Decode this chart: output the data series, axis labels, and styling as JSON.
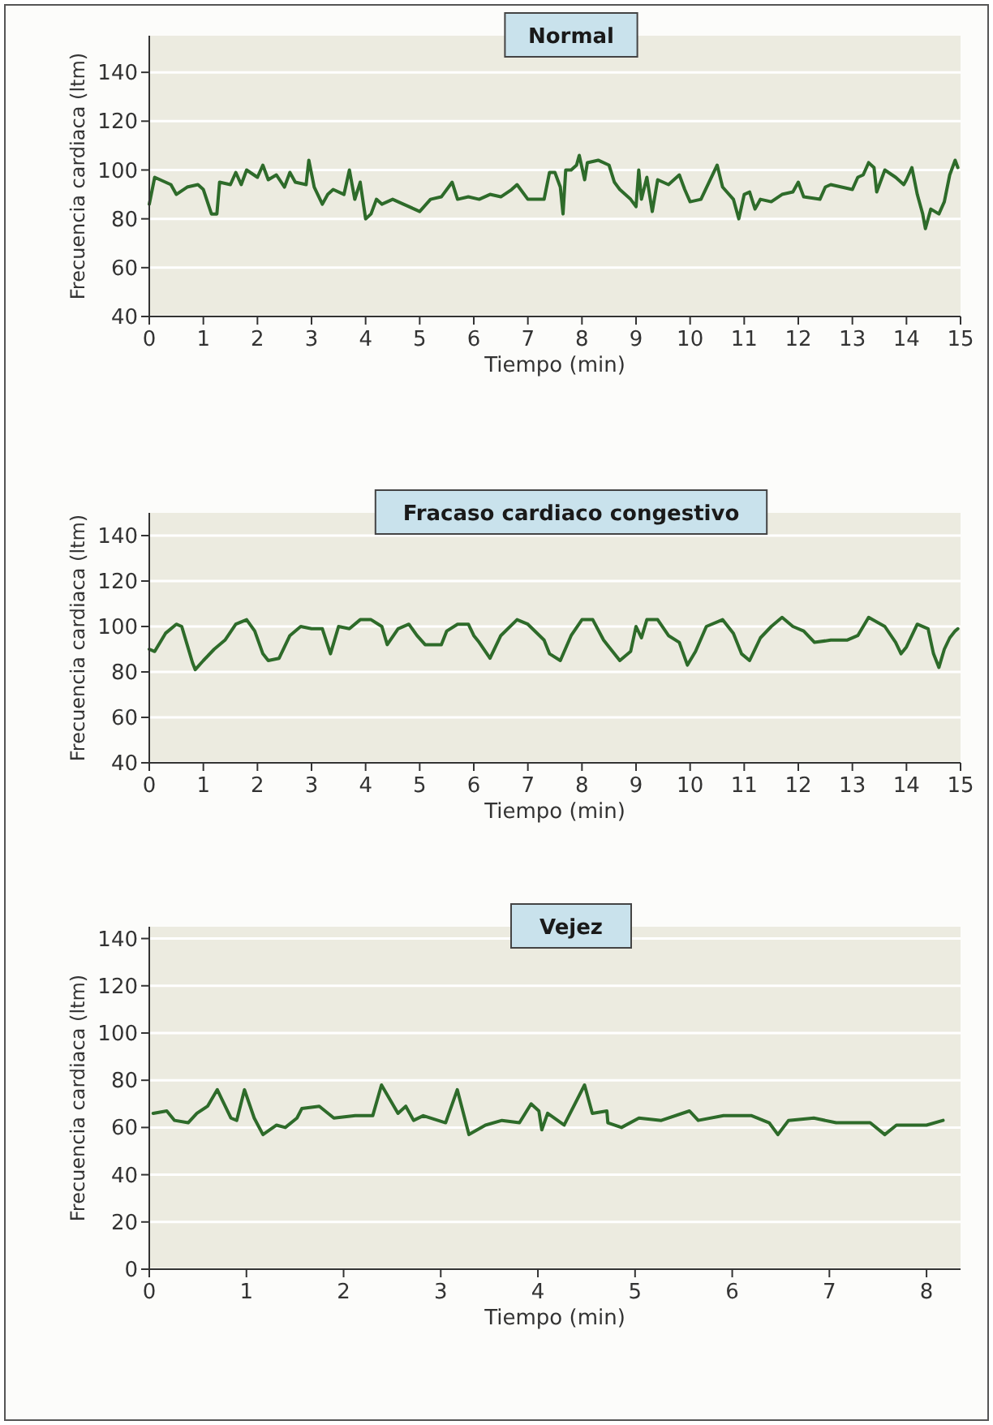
{
  "chart_data": [
    {
      "type": "line",
      "title": "Normal",
      "xlabel": "Tiempo (min)",
      "ylabel": "Frecuencia cardiaca (ltm)",
      "color": "#2e6b2a",
      "grid": "y",
      "xlim": [
        0,
        15
      ],
      "ylim": [
        40,
        155
      ],
      "xticks": [
        0,
        1,
        2,
        3,
        4,
        5,
        6,
        7,
        8,
        9,
        10,
        11,
        12,
        13,
        14,
        15
      ],
      "yticks": [
        40,
        60,
        80,
        100,
        120,
        140
      ],
      "x": [
        0,
        0.1,
        0.2,
        0.4,
        0.5,
        0.7,
        0.9,
        1.0,
        1.15,
        1.25,
        1.3,
        1.5,
        1.6,
        1.7,
        1.8,
        2.0,
        2.1,
        2.2,
        2.35,
        2.5,
        2.6,
        2.7,
        2.9,
        2.95,
        3.05,
        3.2,
        3.3,
        3.4,
        3.6,
        3.7,
        3.8,
        3.9,
        4.0,
        4.1,
        4.2,
        4.3,
        4.5,
        4.7,
        4.9,
        5.0,
        5.2,
        5.4,
        5.6,
        5.7,
        5.9,
        6.1,
        6.3,
        6.5,
        6.7,
        6.8,
        7.0,
        7.3,
        7.4,
        7.5,
        7.6,
        7.65,
        7.7,
        7.8,
        7.9,
        7.95,
        8.05,
        8.1,
        8.3,
        8.5,
        8.6,
        8.7,
        8.9,
        9.0,
        9.05,
        9.1,
        9.2,
        9.3,
        9.4,
        9.6,
        9.8,
        9.9,
        10.0,
        10.2,
        10.5,
        10.6,
        10.8,
        10.9,
        11.0,
        11.1,
        11.2,
        11.3,
        11.5,
        11.7,
        11.9,
        12.0,
        12.1,
        12.4,
        12.5,
        12.6,
        12.8,
        13.0,
        13.1,
        13.2,
        13.3,
        13.4,
        13.45,
        13.6,
        13.8,
        13.95,
        14.0,
        14.1,
        14.2,
        14.3,
        14.35,
        14.45,
        14.6,
        14.7,
        14.8,
        14.9,
        14.95
      ],
      "values": [
        86,
        97,
        96,
        94,
        90,
        93,
        94,
        92,
        82,
        82,
        95,
        94,
        99,
        94,
        100,
        97,
        102,
        96,
        98,
        93,
        99,
        95,
        94,
        104,
        93,
        86,
        90,
        92,
        90,
        100,
        88,
        95,
        80,
        82,
        88,
        86,
        88,
        86,
        84,
        83,
        88,
        89,
        95,
        88,
        89,
        88,
        90,
        89,
        92,
        94,
        88,
        88,
        99,
        99,
        93,
        82,
        100,
        100,
        102,
        106,
        96,
        103,
        104,
        102,
        95,
        92,
        88,
        85,
        100,
        88,
        97,
        83,
        96,
        94,
        98,
        92,
        87,
        88,
        102,
        93,
        88,
        80,
        90,
        91,
        84,
        88,
        87,
        90,
        91,
        95,
        89,
        88,
        93,
        94,
        93,
        92,
        97,
        98,
        103,
        101,
        91,
        100,
        97,
        94,
        96,
        101,
        90,
        82,
        76,
        84,
        82,
        87,
        98,
        104,
        101
      ]
    },
    {
      "type": "line",
      "title": "Fracaso cardiaco congestivo",
      "xlabel": "Tiempo (min)",
      "ylabel": "Frecuencia cardiaca (ltm)",
      "color": "#2e6b2a",
      "grid": "y",
      "xlim": [
        0,
        15
      ],
      "ylim": [
        40,
        150
      ],
      "xticks": [
        0,
        1,
        2,
        3,
        4,
        5,
        6,
        7,
        8,
        9,
        10,
        11,
        12,
        13,
        14,
        15
      ],
      "yticks": [
        40,
        60,
        80,
        100,
        120,
        140
      ],
      "x": [
        0,
        0.1,
        0.3,
        0.5,
        0.6,
        0.7,
        0.8,
        0.85,
        1.0,
        1.2,
        1.4,
        1.6,
        1.8,
        1.95,
        2.1,
        2.2,
        2.4,
        2.6,
        2.8,
        3.0,
        3.2,
        3.35,
        3.5,
        3.7,
        3.9,
        4.1,
        4.3,
        4.4,
        4.6,
        4.8,
        4.95,
        5.1,
        5.4,
        5.5,
        5.7,
        5.9,
        6.0,
        6.1,
        6.3,
        6.5,
        6.8,
        7.0,
        7.3,
        7.4,
        7.6,
        7.8,
        8.0,
        8.2,
        8.4,
        8.5,
        8.7,
        8.9,
        9.0,
        9.1,
        9.2,
        9.4,
        9.6,
        9.8,
        9.95,
        10.1,
        10.3,
        10.6,
        10.8,
        10.95,
        11.1,
        11.3,
        11.5,
        11.7,
        11.9,
        12.1,
        12.3,
        12.6,
        12.9,
        13.1,
        13.3,
        13.6,
        13.8,
        13.9,
        14.0,
        14.2,
        14.4,
        14.5,
        14.6,
        14.7,
        14.8,
        14.9,
        14.95
      ],
      "values": [
        90,
        89,
        97,
        101,
        100,
        92,
        84,
        81,
        85,
        90,
        94,
        101,
        103,
        98,
        88,
        85,
        86,
        96,
        100,
        99,
        99,
        88,
        100,
        99,
        103,
        103,
        100,
        92,
        99,
        101,
        96,
        92,
        92,
        98,
        101,
        101,
        96,
        93,
        86,
        96,
        103,
        101,
        94,
        88,
        85,
        96,
        103,
        103,
        94,
        91,
        85,
        89,
        100,
        95,
        103,
        103,
        96,
        93,
        83,
        89,
        100,
        103,
        97,
        88,
        85,
        95,
        100,
        104,
        100,
        98,
        93,
        94,
        94,
        96,
        104,
        100,
        93,
        88,
        91,
        101,
        99,
        88,
        82,
        90,
        95,
        98,
        99
      ]
    },
    {
      "type": "line",
      "title": "Vejez",
      "xlabel": "Tiempo (min)",
      "ylabel": "Frecuencia cardiaca (ltm)",
      "color": "#2e6b2a",
      "grid": "y",
      "xlim": [
        0,
        8.35
      ],
      "ylim": [
        0,
        145
      ],
      "xticks": [
        0,
        1,
        2,
        3,
        4,
        5,
        6,
        7,
        8
      ],
      "yticks": [
        0,
        20,
        40,
        60,
        80,
        100,
        120,
        140
      ],
      "x": [
        0.04,
        0.18,
        0.26,
        0.4,
        0.49,
        0.6,
        0.7,
        0.84,
        0.9,
        0.98,
        1.08,
        1.17,
        1.31,
        1.4,
        1.52,
        1.57,
        1.75,
        1.9,
        2.12,
        2.3,
        2.39,
        2.56,
        2.64,
        2.72,
        2.82,
        3.05,
        3.17,
        3.29,
        3.46,
        3.63,
        3.81,
        3.93,
        4.01,
        4.04,
        4.1,
        4.27,
        4.48,
        4.56,
        4.71,
        4.72,
        4.86,
        5.04,
        5.27,
        5.56,
        5.65,
        5.91,
        6.2,
        6.38,
        6.47,
        6.58,
        6.84,
        7.07,
        7.42,
        7.57,
        7.69,
        8.0,
        8.17
      ],
      "values": [
        66,
        67,
        63,
        62,
        66,
        69,
        76,
        64,
        63,
        76,
        64,
        57,
        61,
        60,
        64,
        68,
        69,
        64,
        65,
        65,
        78,
        66,
        69,
        63,
        65,
        62,
        76,
        57,
        61,
        63,
        62,
        70,
        67,
        59,
        66,
        61,
        78,
        66,
        67,
        62,
        60,
        64,
        63,
        67,
        63,
        65,
        65,
        62,
        57,
        63,
        64,
        62,
        62,
        57,
        61,
        61,
        63
      ]
    }
  ]
}
